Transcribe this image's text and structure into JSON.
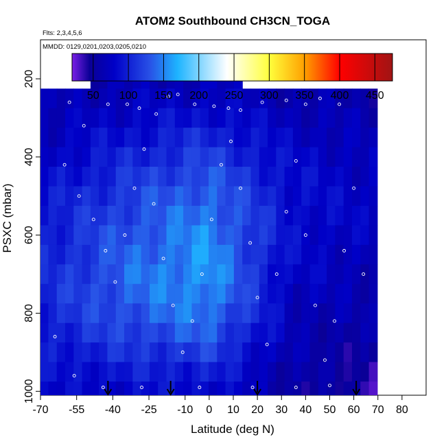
{
  "chart_data": {
    "type": "heatmap",
    "title": "ATOM2 Southbound CH3CN_TOGA",
    "flights_note": "Flts: 2,3,4,5,6",
    "dates_note": "MMDD: 0129,0201,0203,0205,0210",
    "xlabel": "Latitude (deg N)",
    "ylabel": "PSXC (mbar)",
    "xlim": [
      -70,
      90
    ],
    "ylim": [
      1010,
      100
    ],
    "y_reversed": true,
    "grid": false,
    "x_ticks": [
      -70,
      -55,
      -40,
      -25,
      -10,
      0,
      10,
      20,
      30,
      40,
      50,
      60,
      70,
      80
    ],
    "y_ticks": [
      200,
      400,
      600,
      800,
      1000
    ],
    "colorbar": {
      "range": [
        20,
        475
      ],
      "ticks": [
        50,
        100,
        150,
        200,
        250,
        300,
        350,
        400,
        450
      ],
      "colors": [
        "#7a1fe6",
        "#0a0096",
        "#0000c8",
        "#2850e6",
        "#1eb4ff",
        "#ffffff",
        "#ffff3c",
        "#ffa000",
        "#ff0000",
        "#a01414"
      ],
      "color_stops": [
        20,
        45,
        80,
        130,
        170,
        240,
        300,
        350,
        400,
        475
      ]
    },
    "latitude_bins": [
      -68.5,
      -65,
      -61.5,
      -58,
      -54.5,
      -51,
      -47.5,
      -44,
      -40.5,
      -37,
      -33.5,
      -30,
      -26.5,
      -23,
      -19.5,
      -16,
      -12.5,
      -9,
      -5.5,
      -2,
      1.5,
      5,
      8.5,
      12,
      15.5,
      19,
      22.5,
      26,
      29.5,
      33,
      36.5,
      40,
      43.5,
      47,
      50.5,
      54,
      57.5,
      61,
      64.5,
      68
    ],
    "pressure_levels": [
      200,
      250,
      300,
      350,
      400,
      450,
      500,
      550,
      600,
      650,
      700,
      750,
      800,
      850,
      900,
      950,
      1000
    ],
    "altitude_profiles": [
      {
        "top_pressure": 230,
        "bottom_pressure": 1000,
        "values": [
          60,
          62,
          66,
          72,
          78,
          84,
          90,
          94,
          98,
          100,
          102,
          104,
          102,
          98,
          92,
          84,
          78
        ]
      },
      {
        "top_pressure": 180,
        "bottom_pressure": 1000,
        "values": [
          65,
          72,
          80,
          90,
          100,
          110,
          118,
          124,
          130,
          134,
          138,
          136,
          130,
          120,
          108,
          95,
          85
        ]
      },
      {
        "top_pressure": 180,
        "bottom_pressure": 1000,
        "values": [
          70,
          78,
          90,
          105,
          118,
          130,
          140,
          148,
          154,
          158,
          160,
          156,
          148,
          135,
          118,
          100,
          88
        ]
      },
      {
        "top_pressure": 230,
        "bottom_pressure": 1000,
        "values": [
          60,
          64,
          70,
          76,
          82,
          86,
          88,
          88,
          86,
          82,
          78,
          74,
          70,
          66,
          62,
          58,
          55
        ]
      },
      {
        "top_pressure": 230,
        "bottom_pressure": 1000,
        "values": [
          55,
          58,
          62,
          66,
          70,
          72,
          74,
          74,
          72,
          70,
          66,
          62,
          58,
          54,
          50,
          46,
          42
        ]
      }
    ],
    "sample_points": [
      {
        "lat": -58,
        "p": 260
      },
      {
        "lat": -52,
        "p": 320
      },
      {
        "lat": -47,
        "p": 200
      },
      {
        "lat": -42,
        "p": 265
      },
      {
        "lat": -34,
        "p": 265
      },
      {
        "lat": -29,
        "p": 275
      },
      {
        "lat": -22,
        "p": 290
      },
      {
        "lat": -17,
        "p": 245
      },
      {
        "lat": -13,
        "p": 240
      },
      {
        "lat": -6,
        "p": 265
      },
      {
        "lat": 2,
        "p": 270
      },
      {
        "lat": 8,
        "p": 275
      },
      {
        "lat": 13,
        "p": 280
      },
      {
        "lat": 22,
        "p": 260
      },
      {
        "lat": 32,
        "p": 255
      },
      {
        "lat": 40,
        "p": 265
      },
      {
        "lat": 46,
        "p": 250
      },
      {
        "lat": 54,
        "p": 265
      },
      {
        "lat": 66,
        "p": 200
      },
      {
        "lat": -60,
        "p": 420
      },
      {
        "lat": -54,
        "p": 500
      },
      {
        "lat": -48,
        "p": 560
      },
      {
        "lat": -43,
        "p": 640
      },
      {
        "lat": -39,
        "p": 720
      },
      {
        "lat": -35,
        "p": 600
      },
      {
        "lat": -31,
        "p": 480
      },
      {
        "lat": -27,
        "p": 380
      },
      {
        "lat": -23,
        "p": 520
      },
      {
        "lat": -19,
        "p": 660
      },
      {
        "lat": -15,
        "p": 780
      },
      {
        "lat": -11,
        "p": 900
      },
      {
        "lat": -7,
        "p": 820
      },
      {
        "lat": -3,
        "p": 700
      },
      {
        "lat": 1,
        "p": 560
      },
      {
        "lat": 5,
        "p": 420
      },
      {
        "lat": 9,
        "p": 360
      },
      {
        "lat": 13,
        "p": 480
      },
      {
        "lat": 17,
        "p": 620
      },
      {
        "lat": 20,
        "p": 760
      },
      {
        "lat": 24,
        "p": 880
      },
      {
        "lat": 28,
        "p": 700
      },
      {
        "lat": 32,
        "p": 540
      },
      {
        "lat": 36,
        "p": 410
      },
      {
        "lat": 40,
        "p": 600
      },
      {
        "lat": 44,
        "p": 780
      },
      {
        "lat": 48,
        "p": 920
      },
      {
        "lat": 52,
        "p": 820
      },
      {
        "lat": 56,
        "p": 640
      },
      {
        "lat": 60,
        "p": 480
      },
      {
        "lat": 64,
        "p": 700
      },
      {
        "lat": -64,
        "p": 860
      },
      {
        "lat": -56,
        "p": 960
      },
      {
        "lat": -44,
        "p": 990
      },
      {
        "lat": -28,
        "p": 990
      },
      {
        "lat": -4,
        "p": 990
      },
      {
        "lat": 18,
        "p": 990
      },
      {
        "lat": 36,
        "p": 990
      },
      {
        "lat": 50,
        "p": 985
      }
    ],
    "arrow_markers": [
      -42,
      -16,
      20,
      61
    ]
  }
}
